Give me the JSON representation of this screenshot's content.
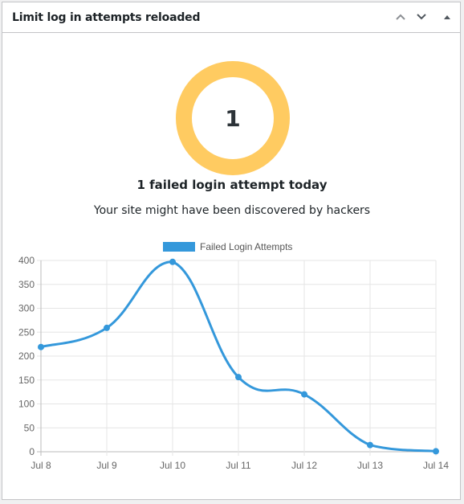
{
  "widget": {
    "title": "Limit log in attempts reloaded",
    "buttons": [
      "move-up",
      "move-down",
      "toggle-panel"
    ]
  },
  "summary": {
    "count": "1",
    "headline": "1 failed login attempt today",
    "message": "Your site might have been discovered by hackers",
    "ring_color": "#ffcb61"
  },
  "chart_data": {
    "type": "line",
    "categories": [
      "Jul 8",
      "Jul 9",
      "Jul 10",
      "Jul 11",
      "Jul 12",
      "Jul 13",
      "Jul 14"
    ],
    "series": [
      {
        "name": "Failed Login Attempts",
        "values": [
          219,
          259,
          397,
          156,
          120,
          14,
          1
        ],
        "color": "#3498db"
      }
    ],
    "yticks": [
      0,
      50,
      100,
      150,
      200,
      250,
      300,
      350,
      400
    ],
    "ylim": [
      0,
      400
    ],
    "grid": true,
    "legend": "top-center"
  }
}
